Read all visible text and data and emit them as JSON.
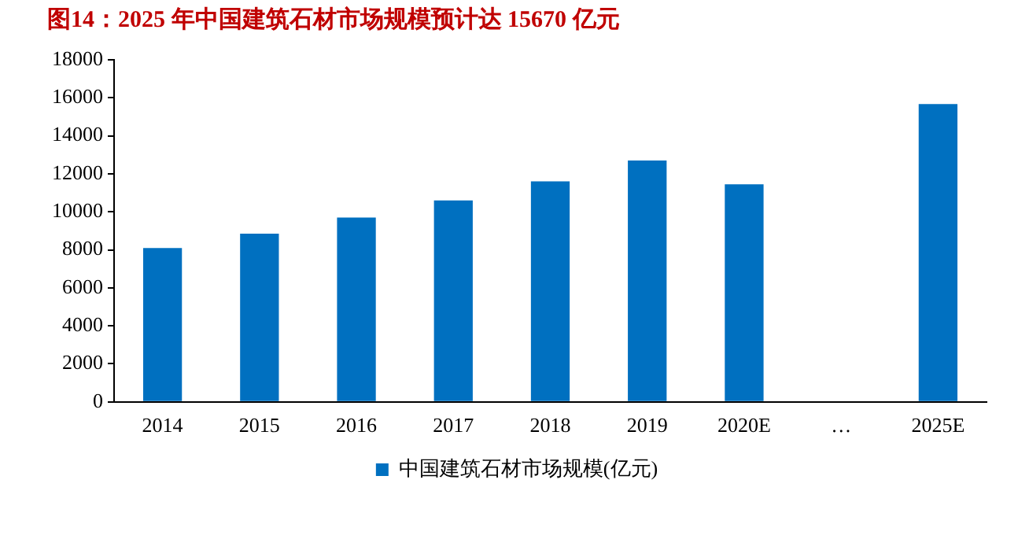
{
  "chart_data": {
    "type": "bar",
    "title": "图14：2025 年中国建筑石材市场规模预计达 15670 亿元",
    "categories": [
      "2014",
      "2015",
      "2016",
      "2017",
      "2018",
      "2019",
      "2020E",
      "…",
      "2025E"
    ],
    "series": [
      {
        "name": "中国建筑石材市场规模(亿元)",
        "color": "#0070c0",
        "values": [
          8100,
          8850,
          9700,
          10600,
          11600,
          12700,
          11450,
          null,
          15670
        ]
      }
    ],
    "ylim": [
      0,
      18000
    ],
    "yticks": [
      0,
      2000,
      4000,
      6000,
      8000,
      10000,
      12000,
      14000,
      16000,
      18000
    ],
    "grid": false,
    "legend": "bottom"
  }
}
